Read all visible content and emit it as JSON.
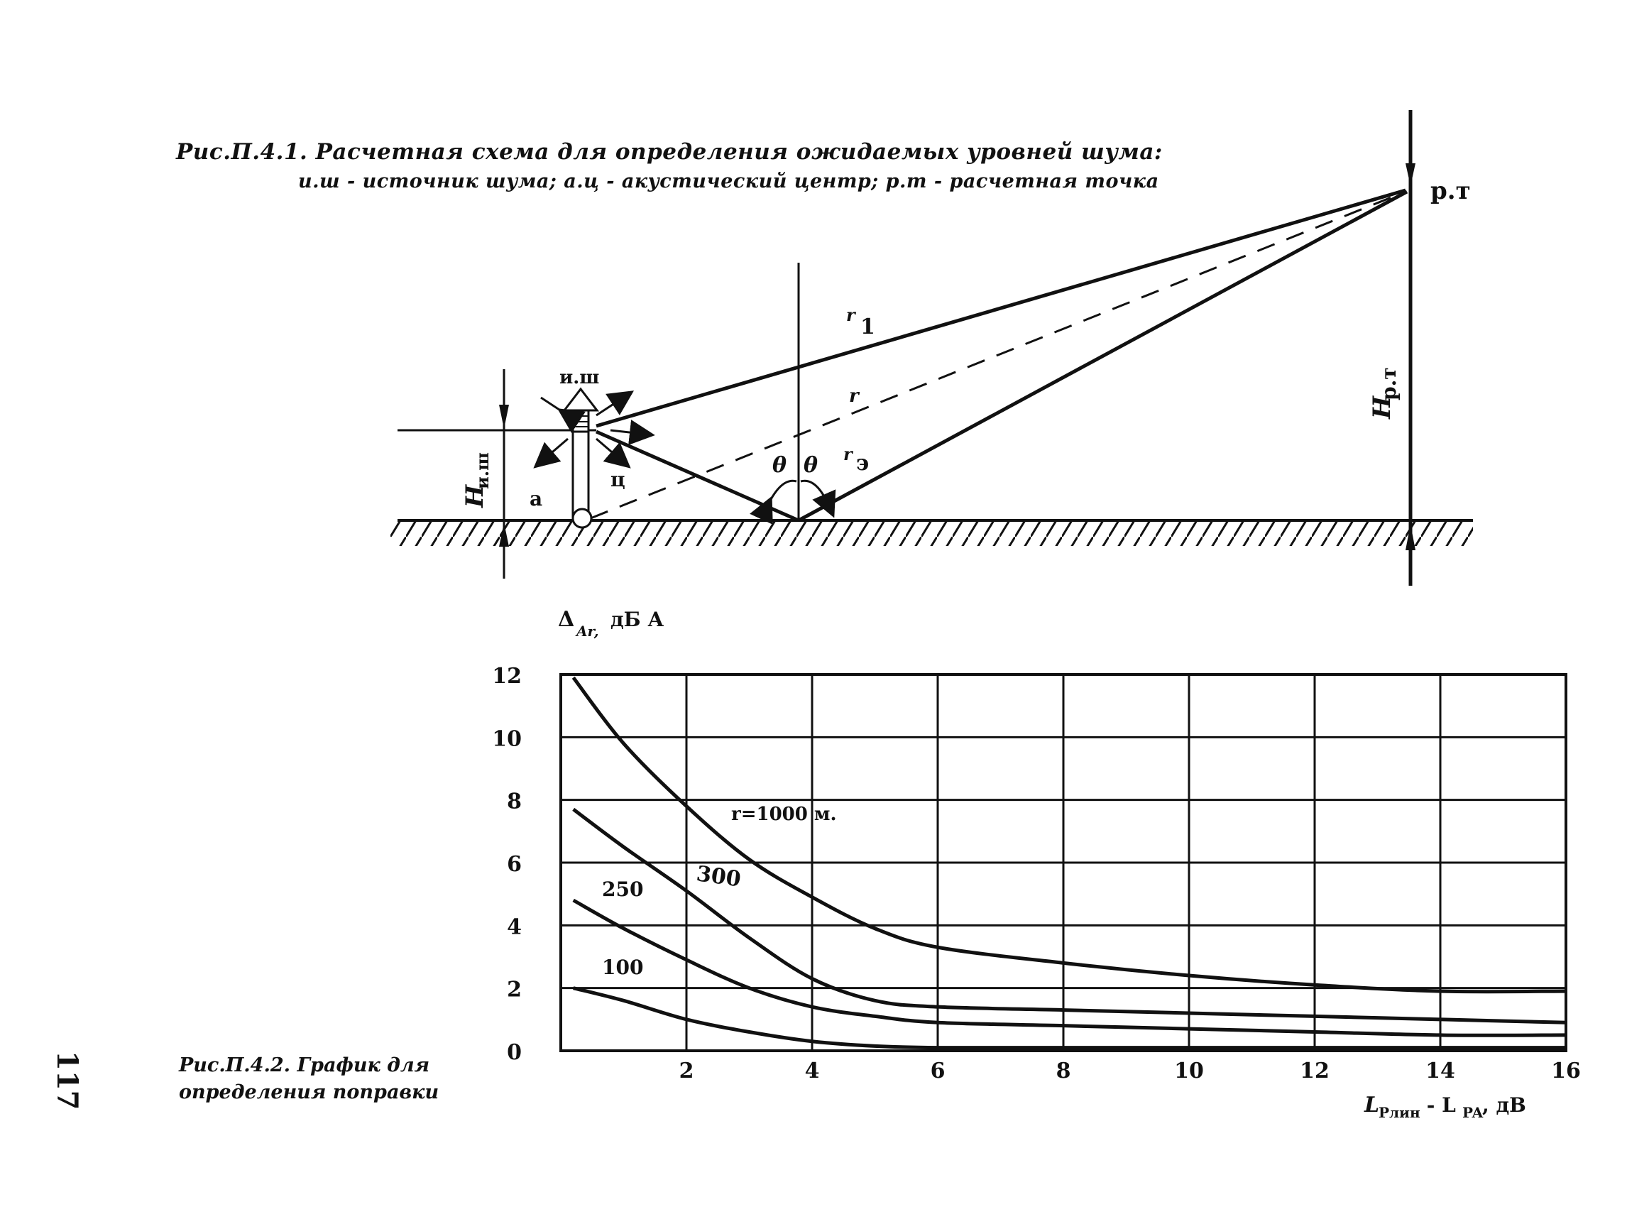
{
  "page_number": "117",
  "figure1": {
    "title": "Рис.П.4.1. Расчетная схема для определения ожидаемых уровней шума:",
    "legend": "и.ш - источник шума; а.ц - акустический центр; р.т - расчетная точка",
    "labels": {
      "source": "и.ш",
      "calc_point": "р.т",
      "r1": "r",
      "r1_sub": "1",
      "r": "r",
      "r_reflected": "r",
      "r_reflected_sub": "э",
      "theta_left": "θ",
      "theta_right": "θ",
      "a": "а",
      "ts": "ц",
      "h_source": "H",
      "h_source_sub": "и.ш",
      "h_point": "H",
      "h_point_sub": "р.т"
    }
  },
  "figure2": {
    "caption_line1": "Рис.П.4.2. График для",
    "caption_line2": "определения поправки",
    "ylabel": "Δ",
    "ylabel_sub": "Ar,",
    "ylabel_unit": "дБ А",
    "xlabel_main": "L",
    "xlabel_sub1": "Pлин",
    "xlabel_mid": " - L",
    "xlabel_sub2": "PA",
    "xlabel_unit": ", дВ",
    "curve_labels": [
      "r=1000 м.",
      "300",
      "250",
      "100"
    ]
  },
  "chart_data": {
    "type": "line",
    "title": "",
    "xlabel": "LPлин - LPA, дВ",
    "ylabel": "ΔAr, дБ А",
    "xlim": [
      0,
      16
    ],
    "ylim": [
      0,
      12
    ],
    "xticks": [
      2,
      4,
      6,
      8,
      10,
      12,
      14,
      16
    ],
    "yticks": [
      0,
      2,
      4,
      6,
      8,
      10,
      12
    ],
    "grid": true,
    "series": [
      {
        "name": "r=1000 м.",
        "x": [
          0.2,
          1,
          2,
          3,
          4,
          5,
          6,
          8,
          10,
          12,
          14,
          16
        ],
        "y": [
          11.9,
          9.8,
          7.8,
          6.1,
          4.9,
          3.9,
          3.3,
          2.8,
          2.4,
          2.1,
          1.9,
          1.9
        ]
      },
      {
        "name": "300",
        "x": [
          0.2,
          1,
          2,
          3,
          4,
          5,
          6,
          8,
          10,
          12,
          14,
          16
        ],
        "y": [
          7.7,
          6.5,
          5.1,
          3.6,
          2.3,
          1.6,
          1.4,
          1.3,
          1.2,
          1.1,
          1.0,
          0.9
        ]
      },
      {
        "name": "250",
        "x": [
          0.2,
          1,
          2,
          3,
          4,
          5,
          6,
          8,
          10,
          12,
          14,
          16
        ],
        "y": [
          4.8,
          3.9,
          2.9,
          2.0,
          1.4,
          1.1,
          0.9,
          0.8,
          0.7,
          0.6,
          0.5,
          0.5
        ]
      },
      {
        "name": "100",
        "x": [
          0.2,
          1,
          2,
          3,
          4,
          5,
          6,
          8,
          10,
          12,
          14,
          16
        ],
        "y": [
          2.0,
          1.6,
          1.0,
          0.6,
          0.3,
          0.15,
          0.1,
          0.1,
          0.1,
          0.1,
          0.1,
          0.1
        ]
      }
    ]
  }
}
